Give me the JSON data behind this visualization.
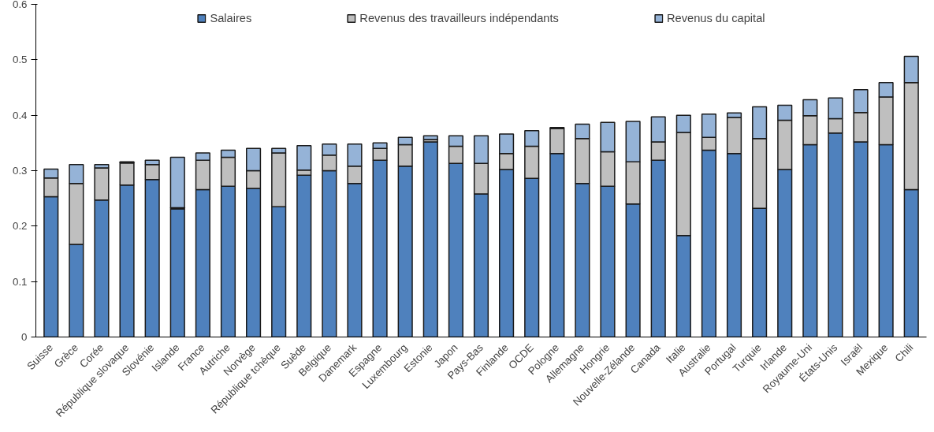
{
  "chart_data": {
    "type": "bar",
    "stacked": true,
    "legend": "top",
    "grid": false,
    "categories": [
      "Suisse",
      "Grèce",
      "Corée",
      "République slovaque",
      "Slovénie",
      "Islande",
      "France",
      "Autriche",
      "Norvège",
      "République tchèque",
      "Suède",
      "Belgique",
      "Danemark",
      "Espagne",
      "Luxembourg",
      "Estonie",
      "Japon",
      "Pays-Bas",
      "Finlande",
      "OCDE",
      "Pologne",
      "Allemagne",
      "Hongrie",
      "Nouvelle-Zélande",
      "Canada",
      "Italie",
      "Australie",
      "Portugal",
      "Turquie",
      "Irlande",
      "Royaume-Uni",
      "États-Unis",
      "Israël",
      "Mexique",
      "Chili"
    ],
    "series": [
      {
        "name": "Salaires",
        "color": "#4f81bd",
        "values": [
          0.253,
          0.167,
          0.247,
          0.274,
          0.284,
          0.231,
          0.266,
          0.272,
          0.268,
          0.235,
          0.292,
          0.3,
          0.277,
          0.319,
          0.308,
          0.352,
          0.313,
          0.258,
          0.302,
          0.286,
          0.331,
          0.277,
          0.272,
          0.24,
          0.319,
          0.183,
          0.337,
          0.331,
          0.232,
          0.302,
          0.347,
          0.368,
          0.352,
          0.347,
          0.266
        ]
      },
      {
        "name": "Revenus des travailleurs indépendants",
        "color": "#bfbfbf",
        "values": [
          0.034,
          0.11,
          0.058,
          0.04,
          0.027,
          0.002,
          0.053,
          0.052,
          0.032,
          0.097,
          0.009,
          0.028,
          0.031,
          0.021,
          0.039,
          0.004,
          0.031,
          0.055,
          0.029,
          0.058,
          0.045,
          0.081,
          0.062,
          0.076,
          0.033,
          0.186,
          0.023,
          0.065,
          0.126,
          0.089,
          0.052,
          0.026,
          0.053,
          0.086,
          0.193
        ]
      },
      {
        "name": "Revenus du capital",
        "color": "#95b3d7",
        "values": [
          0.016,
          0.034,
          0.006,
          0.002,
          0.008,
          0.091,
          0.013,
          0.013,
          0.04,
          0.008,
          0.044,
          0.02,
          0.04,
          0.01,
          0.013,
          0.007,
          0.019,
          0.05,
          0.035,
          0.028,
          0.002,
          0.026,
          0.053,
          0.073,
          0.045,
          0.031,
          0.042,
          0.008,
          0.057,
          0.027,
          0.029,
          0.037,
          0.041,
          0.026,
          0.047
        ]
      }
    ],
    "ylim": [
      0,
      0.6
    ],
    "yticks": [
      {
        "value": 0,
        "label": "0"
      },
      0.1,
      0.2,
      0.3,
      0.4,
      0.5,
      0.6
    ]
  }
}
